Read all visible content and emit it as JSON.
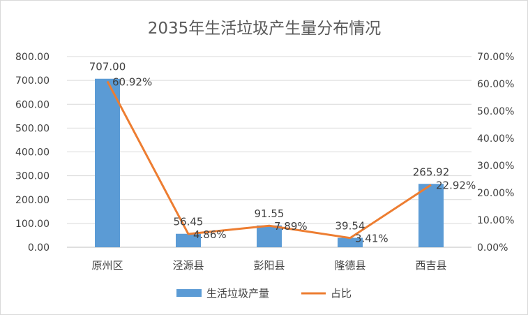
{
  "chart_data": {
    "type": "bar+line",
    "title": "2035年生活垃圾产生量分布情况",
    "categories": [
      "原州区",
      "泾源县",
      "彭阳县",
      "隆德县",
      "西吉县"
    ],
    "series": [
      {
        "name": "生活垃圾产量",
        "type": "bar",
        "axis": "left",
        "values": [
          707.0,
          56.45,
          91.55,
          39.54,
          265.92
        ],
        "labels": [
          "707.00",
          "56.45",
          "91.55",
          "39.54",
          "265.92"
        ],
        "color": "#5b9bd5"
      },
      {
        "name": "占比",
        "type": "line",
        "axis": "right",
        "values": [
          60.92,
          4.86,
          7.89,
          3.41,
          22.92
        ],
        "labels": [
          "60.92%",
          "4.86%",
          "7.89%",
          "3.41%",
          "22.92%"
        ],
        "color": "#ed7d31"
      }
    ],
    "left_axis": {
      "ylim": [
        0,
        800
      ],
      "ticks": [
        "0.00",
        "100.00",
        "200.00",
        "300.00",
        "400.00",
        "500.00",
        "600.00",
        "700.00",
        "800.00"
      ]
    },
    "right_axis": {
      "ylim": [
        0,
        70
      ],
      "ticks": [
        "0.00%",
        "10.00%",
        "20.00%",
        "30.00%",
        "40.00%",
        "50.00%",
        "60.00%",
        "70.00%"
      ]
    },
    "grid": true,
    "legend": "bottom"
  }
}
